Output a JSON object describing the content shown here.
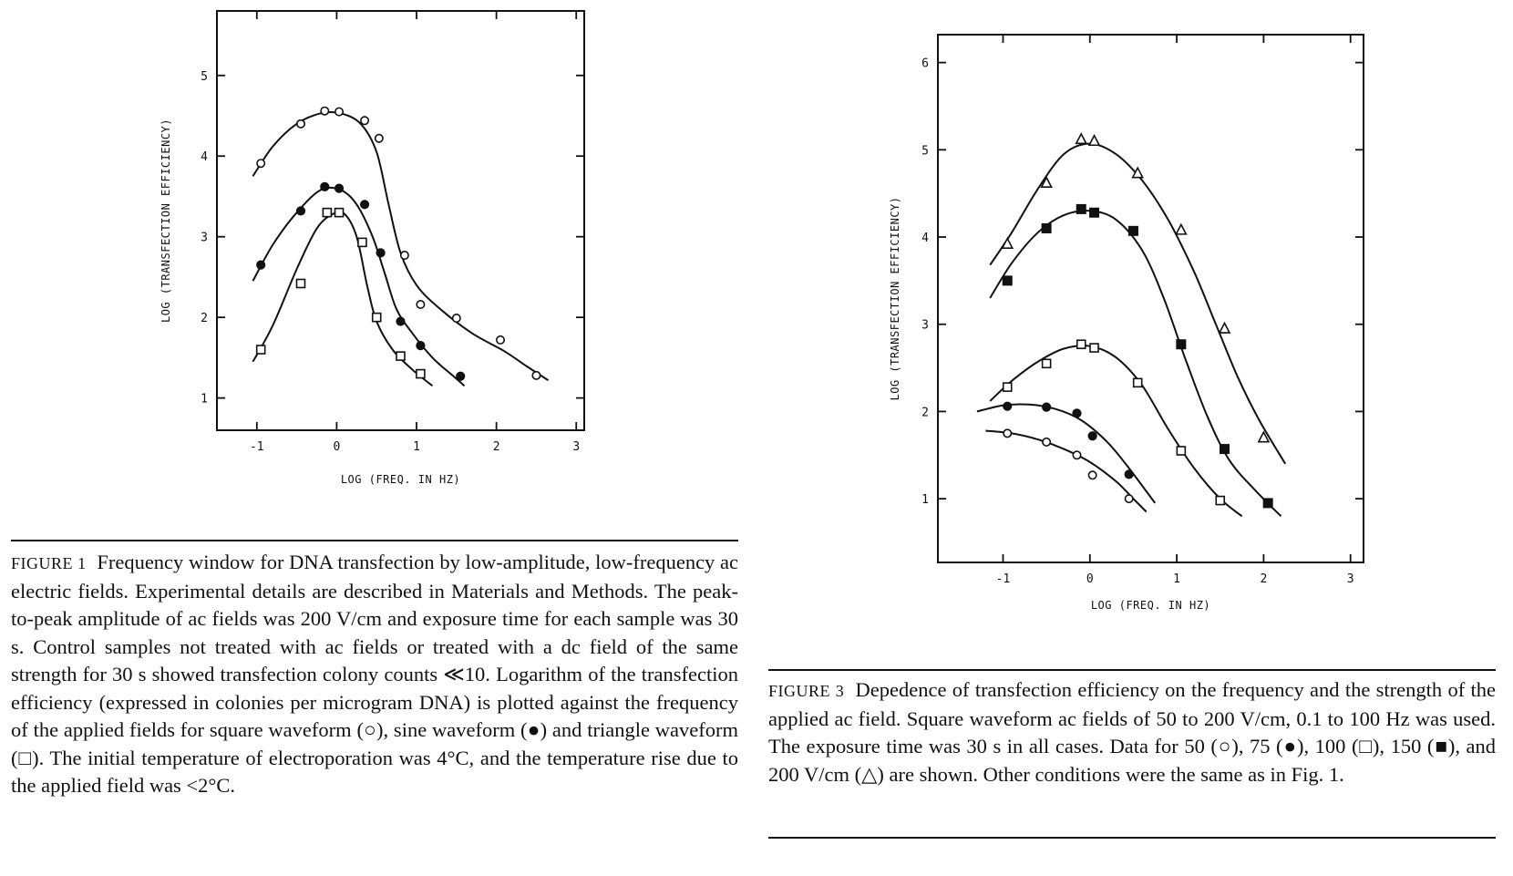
{
  "chart_data": [
    {
      "type": "scatter",
      "title": "",
      "xlabel": "LOG (FREQ. IN HZ)",
      "ylabel": "LOG (TRANSFECTION EFFICIENCY)",
      "xlim": [
        -1.5,
        3.1
      ],
      "ylim": [
        0.6,
        5.8
      ],
      "xticks": [
        -1,
        0,
        1,
        2,
        3
      ],
      "yticks": [
        1,
        2,
        3,
        4,
        5
      ],
      "grid": false,
      "series": [
        {
          "marker": "open-circle",
          "points": [
            [
              -0.95,
              3.91
            ],
            [
              -0.45,
              4.4
            ],
            [
              -0.15,
              4.56
            ],
            [
              0.03,
              4.55
            ],
            [
              0.35,
              4.44
            ],
            [
              0.53,
              4.22
            ],
            [
              0.85,
              2.77
            ],
            [
              1.05,
              2.16
            ],
            [
              1.5,
              1.99
            ],
            [
              2.05,
              1.72
            ],
            [
              2.5,
              1.28
            ]
          ],
          "curve": [
            [
              -1.05,
              3.75
            ],
            [
              -0.8,
              4.12
            ],
            [
              -0.5,
              4.4
            ],
            [
              -0.2,
              4.53
            ],
            [
              0.05,
              4.53
            ],
            [
              0.3,
              4.4
            ],
            [
              0.5,
              4.05
            ],
            [
              0.65,
              3.4
            ],
            [
              0.8,
              2.8
            ],
            [
              1.0,
              2.4
            ],
            [
              1.3,
              2.1
            ],
            [
              1.7,
              1.8
            ],
            [
              2.1,
              1.58
            ],
            [
              2.4,
              1.38
            ],
            [
              2.65,
              1.22
            ]
          ]
        },
        {
          "marker": "filled-circle",
          "points": [
            [
              -0.95,
              2.65
            ],
            [
              -0.45,
              3.32
            ],
            [
              -0.15,
              3.62
            ],
            [
              0.03,
              3.6
            ],
            [
              0.35,
              3.4
            ],
            [
              0.55,
              2.8
            ],
            [
              0.8,
              1.95
            ],
            [
              1.05,
              1.65
            ],
            [
              1.55,
              1.27
            ]
          ],
          "curve": [
            [
              -1.05,
              2.45
            ],
            [
              -0.8,
              2.9
            ],
            [
              -0.5,
              3.3
            ],
            [
              -0.2,
              3.58
            ],
            [
              0.05,
              3.58
            ],
            [
              0.25,
              3.4
            ],
            [
              0.45,
              3.0
            ],
            [
              0.6,
              2.55
            ],
            [
              0.75,
              2.1
            ],
            [
              0.95,
              1.8
            ],
            [
              1.2,
              1.5
            ],
            [
              1.45,
              1.28
            ],
            [
              1.6,
              1.15
            ]
          ]
        },
        {
          "marker": "open-square",
          "points": [
            [
              -0.95,
              1.6
            ],
            [
              -0.45,
              2.42
            ],
            [
              -0.12,
              3.3
            ],
            [
              0.03,
              3.3
            ],
            [
              0.32,
              2.93
            ],
            [
              0.5,
              2.0
            ],
            [
              0.8,
              1.52
            ],
            [
              1.05,
              1.3
            ]
          ],
          "curve": [
            [
              -1.05,
              1.45
            ],
            [
              -0.8,
              1.9
            ],
            [
              -0.5,
              2.6
            ],
            [
              -0.25,
              3.1
            ],
            [
              -0.05,
              3.28
            ],
            [
              0.1,
              3.28
            ],
            [
              0.25,
              3.0
            ],
            [
              0.38,
              2.4
            ],
            [
              0.5,
              1.95
            ],
            [
              0.7,
              1.6
            ],
            [
              0.95,
              1.35
            ],
            [
              1.2,
              1.15
            ]
          ]
        }
      ]
    },
    {
      "type": "scatter",
      "title": "",
      "xlabel": "LOG (FREQ. IN HZ)",
      "ylabel": "LOG (TRANSFECTION EFFICIENCY)",
      "xlim": [
        -1.75,
        3.15
      ],
      "ylim": [
        0.27,
        6.32
      ],
      "xticks": [
        -1,
        0,
        1,
        2,
        3
      ],
      "yticks": [
        1,
        2,
        3,
        4,
        5,
        6
      ],
      "grid": false,
      "series": [
        {
          "marker": "open-circle",
          "points": [
            [
              -0.95,
              1.75
            ],
            [
              -0.5,
              1.65
            ],
            [
              -0.15,
              1.5
            ],
            [
              0.03,
              1.27
            ],
            [
              0.45,
              1.0
            ]
          ],
          "curve": [
            [
              -1.2,
              1.78
            ],
            [
              -0.9,
              1.75
            ],
            [
              -0.6,
              1.68
            ],
            [
              -0.3,
              1.57
            ],
            [
              0.0,
              1.42
            ],
            [
              0.3,
              1.2
            ],
            [
              0.5,
              1.0
            ],
            [
              0.65,
              0.85
            ]
          ]
        },
        {
          "marker": "filled-circle",
          "points": [
            [
              -0.95,
              2.06
            ],
            [
              -0.5,
              2.05
            ],
            [
              -0.15,
              1.98
            ],
            [
              0.03,
              1.72
            ],
            [
              0.45,
              1.28
            ]
          ],
          "curve": [
            [
              -1.3,
              2.0
            ],
            [
              -1.0,
              2.07
            ],
            [
              -0.7,
              2.08
            ],
            [
              -0.4,
              2.03
            ],
            [
              -0.1,
              1.9
            ],
            [
              0.2,
              1.65
            ],
            [
              0.45,
              1.35
            ],
            [
              0.75,
              0.95
            ]
          ]
        },
        {
          "marker": "open-square",
          "points": [
            [
              -0.95,
              2.28
            ],
            [
              -0.5,
              2.55
            ],
            [
              -0.1,
              2.77
            ],
            [
              0.05,
              2.73
            ],
            [
              0.55,
              2.33
            ],
            [
              1.05,
              1.55
            ],
            [
              1.5,
              0.98
            ]
          ],
          "curve": [
            [
              -1.15,
              2.12
            ],
            [
              -0.9,
              2.35
            ],
            [
              -0.6,
              2.57
            ],
            [
              -0.3,
              2.72
            ],
            [
              0.0,
              2.75
            ],
            [
              0.3,
              2.62
            ],
            [
              0.6,
              2.3
            ],
            [
              0.9,
              1.8
            ],
            [
              1.2,
              1.35
            ],
            [
              1.5,
              1.0
            ],
            [
              1.75,
              0.8
            ]
          ]
        },
        {
          "marker": "filled-square",
          "points": [
            [
              -0.95,
              3.5
            ],
            [
              -0.5,
              4.1
            ],
            [
              -0.1,
              4.32
            ],
            [
              0.05,
              4.28
            ],
            [
              0.5,
              4.07
            ],
            [
              1.05,
              2.77
            ],
            [
              1.55,
              1.57
            ],
            [
              2.05,
              0.95
            ]
          ],
          "curve": [
            [
              -1.15,
              3.3
            ],
            [
              -0.9,
              3.7
            ],
            [
              -0.6,
              4.05
            ],
            [
              -0.3,
              4.25
            ],
            [
              0.0,
              4.3
            ],
            [
              0.3,
              4.2
            ],
            [
              0.6,
              3.85
            ],
            [
              0.85,
              3.3
            ],
            [
              1.1,
              2.6
            ],
            [
              1.35,
              1.95
            ],
            [
              1.6,
              1.45
            ],
            [
              1.9,
              1.1
            ],
            [
              2.2,
              0.8
            ]
          ]
        },
        {
          "marker": "open-triangle",
          "points": [
            [
              -0.95,
              3.92
            ],
            [
              -0.5,
              4.62
            ],
            [
              -0.1,
              5.12
            ],
            [
              0.05,
              5.1
            ],
            [
              0.55,
              4.73
            ],
            [
              1.05,
              4.08
            ],
            [
              1.55,
              2.95
            ],
            [
              2.0,
              1.7
            ]
          ],
          "curve": [
            [
              -1.15,
              3.68
            ],
            [
              -0.9,
              4.05
            ],
            [
              -0.6,
              4.55
            ],
            [
              -0.3,
              4.95
            ],
            [
              0.0,
              5.07
            ],
            [
              0.3,
              4.95
            ],
            [
              0.6,
              4.65
            ],
            [
              0.9,
              4.2
            ],
            [
              1.2,
              3.6
            ],
            [
              1.45,
              3.0
            ],
            [
              1.7,
              2.4
            ],
            [
              1.95,
              1.9
            ],
            [
              2.25,
              1.4
            ]
          ]
        }
      ]
    }
  ],
  "captions": {
    "fig1": {
      "label": "FIGURE 1",
      "text": "Frequency window for DNA transfection by low-amplitude, low-frequency ac electric fields. Experimental details are described in Materials and Methods. The peak-to-peak amplitude of ac fields was 200 V/cm and exposure time for each sample was 30 s. Control samples not treated with ac fields or treated with a dc field of the same strength for 30 s showed transfection colony counts ≪10. Logarithm of the transfection efficiency (expressed in colonies per microgram DNA) is plotted against the frequency of the applied fields for square waveform (○), sine waveform (●) and triangle waveform (□). The initial temperature of electroporation was 4°C, and the temperature rise due to the applied field was <2°C."
    },
    "fig3": {
      "label": "FIGURE 3",
      "text": "Depedence of transfection efficiency on the frequency and the strength of the applied ac field. Square waveform ac fields of 50 to 200 V/cm, 0.1 to 100 Hz was used. The exposure time was 30 s in all cases. Data for 50 (○), 75 (●), 100 (□), 150 (■), and 200 V/cm (△) are shown. Other conditions were the same as in Fig. 1."
    }
  }
}
